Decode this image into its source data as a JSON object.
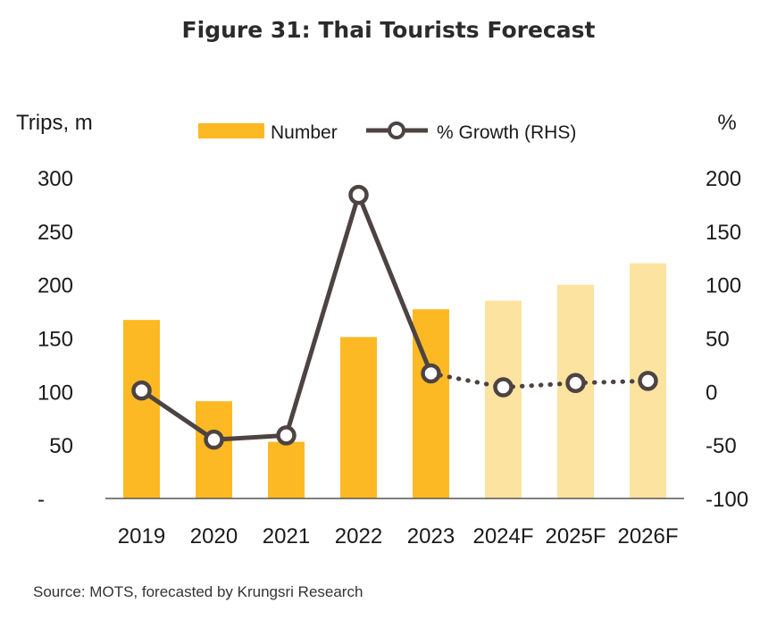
{
  "title": "Figure 31: Thai Tourists Forecast",
  "source": "Source: MOTS, forecasted by Krungsri Research",
  "colors": {
    "bar_actual": "#FDB924",
    "bar_forecast": "#FDE3A0",
    "line": "#4D4342",
    "marker_fill": "#ffffff",
    "axis": "#555555"
  },
  "chart_data": {
    "type": "bar",
    "title": "Figure 31: Thai Tourists Forecast",
    "categories": [
      "2019",
      "2020",
      "2021",
      "2022",
      "2023",
      "2024F",
      "2025F",
      "2026F"
    ],
    "left_axis": {
      "label": "Trips, m",
      "ylim": [
        0,
        300
      ],
      "ticks": [
        0,
        50,
        100,
        150,
        200,
        250,
        300
      ],
      "tick_labels": [
        "-",
        "50",
        "100",
        "150",
        "200",
        "250",
        "300"
      ]
    },
    "right_axis": {
      "label": "%",
      "ylim": [
        -100,
        200
      ],
      "ticks": [
        -100,
        -50,
        0,
        50,
        100,
        150,
        200
      ],
      "tick_labels": [
        "-100",
        "-50",
        "0",
        "50",
        "100",
        "150",
        "200"
      ]
    },
    "legend": {
      "placement": "top-center",
      "bar_label": "Number",
      "line_label": "% Growth (RHS)"
    },
    "grid": false,
    "series": [
      {
        "name": "Number",
        "type": "bar",
        "axis": "left",
        "values": [
          167,
          91,
          53,
          151,
          177,
          185,
          200,
          220
        ],
        "forecast": [
          false,
          false,
          false,
          false,
          false,
          true,
          true,
          true
        ]
      },
      {
        "name": "% Growth (RHS)",
        "type": "line",
        "axis": "right",
        "values": [
          1,
          -45,
          -41,
          184,
          17,
          4,
          8,
          10
        ],
        "forecast": [
          false,
          false,
          false,
          false,
          false,
          true,
          true,
          true
        ]
      }
    ]
  }
}
